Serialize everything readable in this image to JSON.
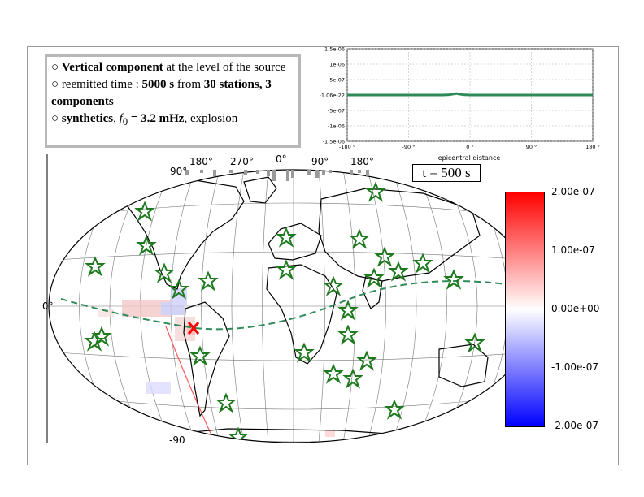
{
  "info": {
    "line1_bold": "Vertical component",
    "line1_rest": " at the level of the source",
    "line2_pre": "reemitted time : ",
    "line2_time": "5000 s",
    "line2_mid": " from ",
    "line2_stations": "30 stations, 3 components",
    "line3_bold": "synthetics",
    "line3_f0": "f",
    "line3_sub": "0",
    "line3_eq": " = 3.2 mHz",
    "line3_rest": ", explosion"
  },
  "time_label": "t = 500 s",
  "map": {
    "lon_labels": [
      "180°",
      "270°",
      "0°",
      "90°",
      "180°"
    ],
    "lat_top": "90°",
    "lat_equator": "0°",
    "lat_bottom": "-90"
  },
  "colorbar": {
    "labels": [
      "2.00e-07",
      "1.00e-07",
      "0.00e+00",
      "-1.00e-07",
      "-2.00e-07"
    ],
    "colors": [
      "#ff0000",
      "#ffffff",
      "#0000ff"
    ]
  },
  "chart_data": {
    "type": "line",
    "xlabel": "epicentral distance",
    "xlim": [
      -180,
      180
    ],
    "ylim": [
      -1.5e-06,
      1.5e-06
    ],
    "x_tick_labels": [
      "-180 °",
      "-90 °",
      "0 °",
      "90 °",
      "180 °"
    ],
    "y_tick_labels": [
      "1.5e-06",
      "1e-06",
      "5e-07",
      "-1.06e-22",
      "-5e-07",
      "-1e-06",
      "-1.5e-06"
    ],
    "grid": true,
    "series": [
      {
        "color": "#2e8b57",
        "x": [
          -180,
          -150,
          -120,
          -90,
          -60,
          -40,
          -30,
          -20,
          -10,
          0,
          30,
          60,
          90,
          120,
          150,
          180
        ],
        "y": [
          0,
          0,
          0,
          0,
          0,
          0,
          1e-08,
          5e-08,
          1e-08,
          0,
          0,
          0,
          0,
          0,
          0,
          0
        ]
      }
    ]
  }
}
